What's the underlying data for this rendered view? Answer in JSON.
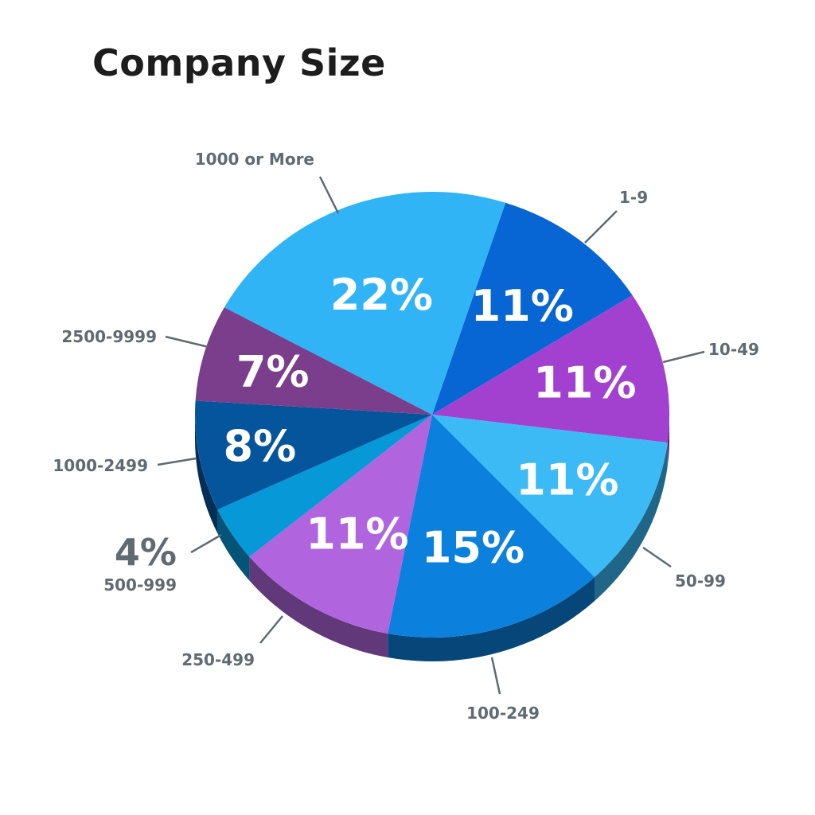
{
  "chart_data": {
    "type": "pie",
    "title": "Company Size",
    "slices": [
      {
        "label": "1-9",
        "value": 11,
        "value_label": "11%",
        "color": "#0866d4"
      },
      {
        "label": "10-49",
        "value": 11,
        "value_label": "11%",
        "color": "#a241d0"
      },
      {
        "label": "50-99",
        "value": 11,
        "value_label": "11%",
        "color": "#3bbaf6"
      },
      {
        "label": "100-249",
        "value": 15,
        "value_label": "15%",
        "color": "#0b80dc"
      },
      {
        "label": "250-499",
        "value": 11,
        "value_label": "11%",
        "color": "#b065de"
      },
      {
        "label": "500-999",
        "value": 4,
        "value_label": "4%",
        "color": "#0798d8"
      },
      {
        "label": "1000-2499",
        "value": 8,
        "value_label": "8%",
        "color": "#05559c"
      },
      {
        "label": "2500-9999",
        "value": 7,
        "value_label": "7%",
        "color": "#7a3e8c"
      },
      {
        "label": "1000 or More",
        "value": 22,
        "value_label": "22%",
        "color": "#30b4f5"
      }
    ]
  }
}
